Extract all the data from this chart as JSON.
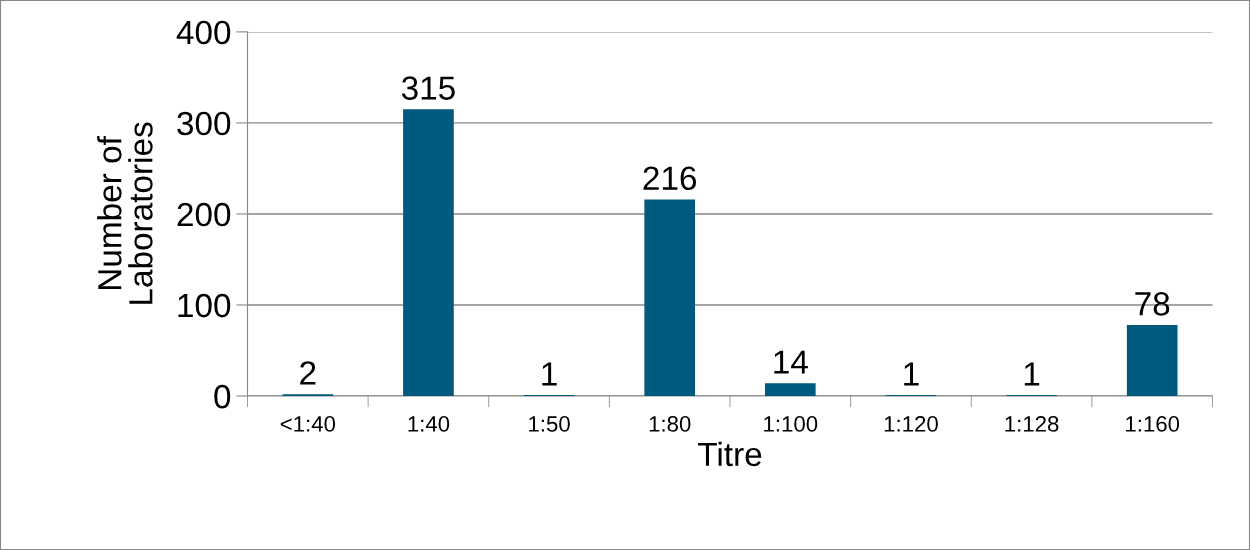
{
  "chart_data": {
    "type": "bar",
    "xlabel": "Titre",
    "ylabel": "Number of\nLaboratories",
    "categories": [
      "<1:40",
      "1:40",
      "1:50",
      "1:80",
      "1:100",
      "1:120",
      "1:128",
      "1:160"
    ],
    "values": [
      2,
      315,
      1,
      216,
      14,
      1,
      1,
      78
    ],
    "color": "#005a7e",
    "ylim": [
      0,
      400
    ],
    "yticks": [
      0,
      100,
      200,
      300,
      400
    ],
    "grid": "y",
    "data_labels": true
  }
}
